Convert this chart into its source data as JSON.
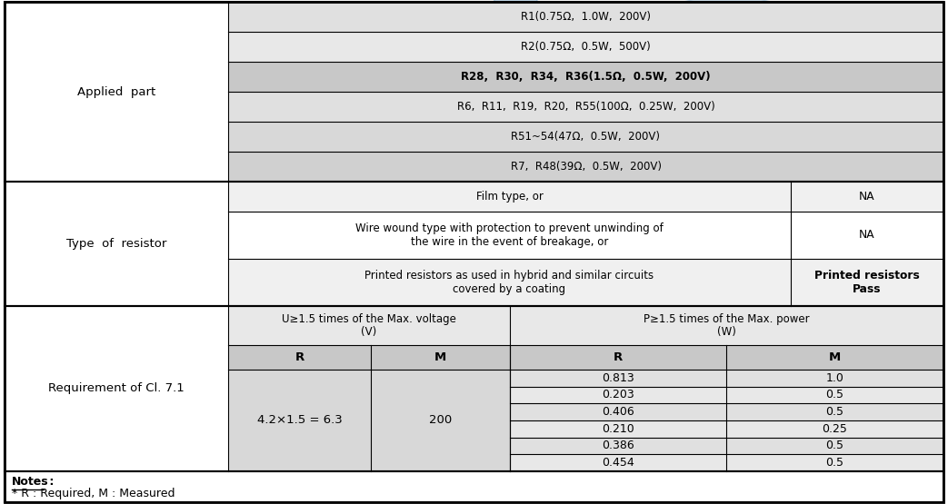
{
  "bg_color": "#ffffff",
  "notes_line1": "Notes :",
  "notes_line2": "* R : Required, M : Measured",
  "applied_part_rows": [
    "R1(0.75Ω,  1.0W,  200V)",
    "R2(0.75Ω,  0.5W,  500V)",
    "R28,  R30,  R34,  R36(1.5Ω,  0.5W,  200V)",
    "R6,  R11,  R19,  R20,  R55(100Ω,  0.25W,  200V)",
    "R51~54(47Ω,  0.5W,  200V)",
    "R7,  R48(39Ω,  0.5W,  200V)"
  ],
  "applied_part_bold": [
    false,
    false,
    true,
    false,
    false,
    false
  ],
  "type_rows_main": [
    "Film type, or",
    "Wire wound type with protection to prevent unwinding of\nthe wire in the event of breakage, or",
    "Printed resistors as used in hybrid and similar circuits\ncovered by a coating"
  ],
  "type_rows_result": [
    "NA",
    "NA",
    "Printed resistors\nPass"
  ],
  "type_rows_result_bold": [
    false,
    false,
    true
  ],
  "req_r_values": [
    "0.813",
    "0.203",
    "0.406",
    "0.210",
    "0.386",
    "0.454"
  ],
  "req_m_values": [
    "1.0",
    "0.5",
    "0.5",
    "0.25",
    "0.5",
    "0.5"
  ],
  "req_r_required": "4.2×1.5 = 6.3",
  "req_m_required": "200",
  "col0_label_applied": "Applied  part",
  "col0_label_type": "Type  of  resistor",
  "col0_label_req": "Requirement of Cl. 7.1",
  "req_header_voltage": "U≥1.5 times of the Max. voltage\n(V)",
  "req_header_power": "P≥1.5 times of the Max. power\n(W)",
  "color_white": "#ffffff",
  "color_light1": "#e8e8e8",
  "color_light2": "#d8d8d8",
  "color_med": "#c8c8c8",
  "color_header": "#d0d0d0",
  "color_row_dark": "#c0c0c0"
}
